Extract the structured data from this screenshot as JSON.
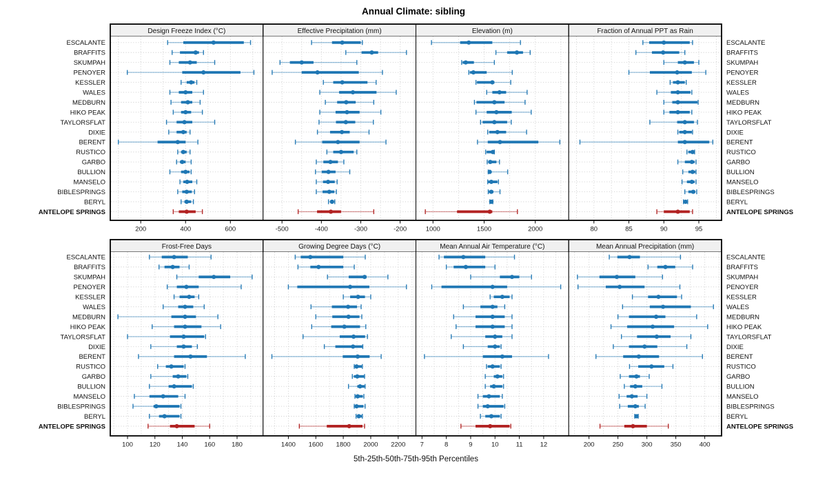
{
  "title": "Annual Climate: sibling",
  "footer": "5th-25th-50th-75th-95th Percentiles",
  "colors": {
    "series": "#1f77b4",
    "target": "#b22222",
    "grid": "#c9c9c9",
    "strip_bg": "#f0f0f0",
    "frame": "#000000",
    "text": "#1a1a1a"
  },
  "chart_data": {
    "type": "percentile-dotplot-trellis",
    "percentiles": [
      "5th",
      "25th",
      "50th",
      "75th",
      "95th"
    ],
    "legend_note": "5th-25th-50th-75th-95th Percentiles",
    "target_site": "ANTELOPE SPRINGS",
    "sites": [
      "ESCALANTE",
      "BRAFFITS",
      "SKUMPAH",
      "PENOYER",
      "KESSLER",
      "WALES",
      "MEDBURN",
      "HIKO PEAK",
      "TAYLORSFLAT",
      "DIXIE",
      "BERENT",
      "RUSTICO",
      "GARBO",
      "BULLION",
      "MANSELO",
      "BIBLESPRINGS",
      "BERYL",
      "ANTELOPE SPRINGS"
    ],
    "panels": [
      {
        "title": "Design Freeze Index (°C)",
        "xlim": [
          64,
          746
        ],
        "ticks": [
          200,
          400,
          600
        ],
        "grid_step": 100,
        "values": [
          [
            320,
            390,
            525,
            660,
            690
          ],
          [
            340,
            375,
            445,
            460,
            480
          ],
          [
            330,
            370,
            420,
            450,
            530
          ],
          [
            140,
            385,
            480,
            645,
            705
          ],
          [
            380,
            405,
            425,
            440,
            450
          ],
          [
            330,
            370,
            400,
            430,
            480
          ],
          [
            335,
            380,
            410,
            430,
            465
          ],
          [
            345,
            380,
            400,
            425,
            475
          ],
          [
            315,
            360,
            395,
            430,
            530
          ],
          [
            325,
            360,
            390,
            405,
            420
          ],
          [
            100,
            275,
            365,
            400,
            455
          ],
          [
            365,
            380,
            390,
            405,
            420
          ],
          [
            360,
            375,
            385,
            400,
            425
          ],
          [
            330,
            380,
            400,
            418,
            425
          ],
          [
            375,
            390,
            407,
            430,
            450
          ],
          [
            365,
            385,
            405,
            428,
            440
          ],
          [
            380,
            395,
            405,
            425,
            435
          ],
          [
            345,
            370,
            405,
            445,
            475
          ]
        ]
      },
      {
        "title": "Effective Precipitation (mm)",
        "xlim": [
          -548,
          -160
        ],
        "ticks": [
          -500,
          -400,
          -300,
          -200
        ],
        "grid_step": 50,
        "values": [
          [
            -425,
            -373,
            -347,
            -300,
            -296
          ],
          [
            -338,
            -298,
            -272,
            -256,
            -184
          ],
          [
            -505,
            -480,
            -450,
            -420,
            -310
          ],
          [
            -525,
            -450,
            -410,
            -305,
            -245
          ],
          [
            -395,
            -370,
            -347,
            -283,
            -261
          ],
          [
            -404,
            -355,
            -320,
            -260,
            -210
          ],
          [
            -390,
            -360,
            -337,
            -313,
            -267
          ],
          [
            -404,
            -364,
            -335,
            -303,
            -249
          ],
          [
            -406,
            -363,
            -338,
            -314,
            -268
          ],
          [
            -410,
            -378,
            -348,
            -328,
            -279
          ],
          [
            -466,
            -398,
            -358,
            -303,
            -236
          ],
          [
            -386,
            -370,
            -350,
            -318,
            -310
          ],
          [
            -413,
            -395,
            -377,
            -358,
            -343
          ],
          [
            -415,
            -399,
            -382,
            -364,
            -328
          ],
          [
            -413,
            -396,
            -383,
            -366,
            -360
          ],
          [
            -413,
            -397,
            -380,
            -367,
            -362
          ],
          [
            -382,
            -378,
            -373,
            -368,
            -366
          ],
          [
            -459,
            -411,
            -376,
            -350,
            -267
          ]
        ]
      },
      {
        "title": "Elevation (m)",
        "xlim": [
          833,
          2327
        ],
        "ticks": [
          1000,
          1500,
          2000
        ],
        "grid_step": 250,
        "values": [
          [
            985,
            1265,
            1350,
            1580,
            1855
          ],
          [
            1615,
            1725,
            1820,
            1880,
            1950
          ],
          [
            1280,
            1290,
            1320,
            1400,
            1600
          ],
          [
            1350,
            1360,
            1395,
            1525,
            1775
          ],
          [
            1420,
            1430,
            1580,
            1600,
            1760
          ],
          [
            1525,
            1580,
            1650,
            1715,
            1920
          ],
          [
            1405,
            1425,
            1600,
            1700,
            1900
          ],
          [
            1420,
            1525,
            1620,
            1770,
            1960
          ],
          [
            1465,
            1485,
            1600,
            1725,
            1765
          ],
          [
            1535,
            1550,
            1630,
            1715,
            1915
          ],
          [
            1435,
            1535,
            1655,
            2030,
            2240
          ],
          [
            1515,
            1525,
            1585,
            1595,
            1600
          ],
          [
            1530,
            1540,
            1560,
            1620,
            1650
          ],
          [
            1540,
            1545,
            1555,
            1570,
            1730
          ],
          [
            1535,
            1540,
            1570,
            1630,
            1640
          ],
          [
            1540,
            1545,
            1570,
            1590,
            1655
          ],
          [
            1555,
            1560,
            1570,
            1580,
            1585
          ],
          [
            925,
            1235,
            1555,
            1580,
            1825
          ]
        ]
      },
      {
        "title": "Fraction of Annual PPT as Rain",
        "xlim": [
          76.4,
          98.25
        ],
        "ticks": [
          80,
          85,
          90,
          95
        ],
        "grid_step": 2.5,
        "values": [
          [
            87,
            87.9,
            90,
            93.7,
            94.1
          ],
          [
            86,
            88.3,
            89.9,
            92.2,
            93
          ],
          [
            90,
            92,
            93,
            94.3,
            95
          ],
          [
            85,
            88,
            91.9,
            94,
            96
          ],
          [
            90.9,
            91.3,
            92,
            93,
            93.2
          ],
          [
            89,
            91,
            92,
            93.8,
            94
          ],
          [
            90,
            91.2,
            92,
            94.8,
            94.9
          ],
          [
            90,
            90.8,
            92,
            93.7,
            94
          ],
          [
            88,
            91.9,
            93,
            94.3,
            94.8
          ],
          [
            92,
            92.2,
            93,
            94,
            94.1
          ],
          [
            78,
            92,
            93,
            96.5,
            97
          ],
          [
            93.3,
            93.5,
            94.1,
            94.3,
            94.4
          ],
          [
            92,
            93,
            94,
            94.4,
            94.6
          ],
          [
            92.7,
            93.5,
            94.1,
            94.5,
            94.6
          ],
          [
            92.6,
            93.3,
            94,
            94.4,
            94.6
          ],
          [
            93,
            93.5,
            94.2,
            94.5,
            94.7
          ],
          [
            92.8,
            92.9,
            93.1,
            93.3,
            93.4
          ],
          [
            89,
            90,
            92,
            93.7,
            94.1
          ]
        ]
      },
      {
        "title": "Frost-Free Days",
        "xlim": [
          87.4,
          199
        ],
        "ticks": [
          100,
          120,
          140,
          160,
          180
        ],
        "grid_step": 10,
        "values": [
          [
            116,
            125,
            134,
            144,
            161
          ],
          [
            123,
            127,
            133,
            138,
            145
          ],
          [
            136,
            152,
            163,
            175,
            191
          ],
          [
            129,
            136,
            143,
            152,
            183
          ],
          [
            134,
            138,
            145,
            149,
            152
          ],
          [
            126,
            137,
            142,
            148,
            156
          ],
          [
            93,
            132,
            142,
            150,
            166
          ],
          [
            118,
            134,
            142,
            154,
            168
          ],
          [
            100,
            131,
            141,
            156,
            157
          ],
          [
            117,
            136,
            141,
            147,
            151
          ],
          [
            108,
            134,
            146,
            158,
            186
          ],
          [
            122,
            128,
            132,
            141,
            142
          ],
          [
            117,
            133,
            137,
            143,
            144
          ],
          [
            116,
            130,
            134,
            147,
            148
          ],
          [
            105,
            116,
            126,
            137,
            142
          ],
          [
            104,
            119,
            121,
            138,
            139
          ],
          [
            116,
            123,
            127,
            138,
            139
          ],
          [
            115,
            131,
            136,
            149,
            160
          ]
        ]
      },
      {
        "title": "Growing Degree Days (°C)",
        "xlim": [
          1216,
          2329
        ],
        "ticks": [
          1400,
          1600,
          1800,
          2000,
          2200
        ],
        "grid_step": 100,
        "values": [
          [
            1450,
            1490,
            1560,
            1800,
            1960
          ],
          [
            1470,
            1560,
            1620,
            1800,
            1880
          ],
          [
            1685,
            1840,
            1955,
            1970,
            2125
          ],
          [
            1400,
            1465,
            1850,
            1990,
            2260
          ],
          [
            1800,
            1850,
            1908,
            1958,
            2000
          ],
          [
            1565,
            1717,
            1835,
            1900,
            1930
          ],
          [
            1600,
            1720,
            1838,
            1918,
            1935
          ],
          [
            1570,
            1712,
            1808,
            1922,
            1964
          ],
          [
            1507,
            1774,
            1875,
            1959,
            1976
          ],
          [
            1662,
            1742,
            1871,
            1939,
            1942
          ],
          [
            1280,
            1796,
            1905,
            1992,
            2076
          ],
          [
            1880,
            1885,
            1897,
            1935,
            1939
          ],
          [
            1866,
            1877,
            1902,
            1952,
            1955
          ],
          [
            1838,
            1902,
            1922,
            1955,
            1959
          ],
          [
            1885,
            1888,
            1905,
            1942,
            1950
          ],
          [
            1880,
            1885,
            1897,
            1947,
            1959
          ],
          [
            1893,
            1902,
            1913,
            1935,
            1939
          ],
          [
            1480,
            1680,
            1843,
            1940,
            1955
          ]
        ]
      },
      {
        "title": "Mean Annual Air Temperature (°C)",
        "xlim": [
          6.75,
          13.03
        ],
        "ticks": [
          7,
          8,
          9,
          10,
          11,
          12
        ],
        "grid_step": 0.5,
        "values": [
          [
            7.7,
            7.9,
            8.7,
            9.6,
            10.8
          ],
          [
            8.0,
            8.3,
            8.8,
            9.6,
            10.0
          ],
          [
            9.0,
            10.2,
            10.7,
            11.0,
            11.5
          ],
          [
            7.4,
            7.8,
            9.9,
            10.5,
            12.7
          ],
          [
            9.8,
            9.95,
            10.3,
            10.6,
            10.7
          ],
          [
            8.7,
            9.4,
            9.9,
            10.1,
            10.4
          ],
          [
            8.3,
            9.2,
            9.9,
            10.4,
            10.7
          ],
          [
            8.4,
            9.2,
            9.9,
            10.4,
            10.7
          ],
          [
            8.2,
            9.6,
            10.0,
            10.3,
            10.7
          ],
          [
            8.7,
            9.7,
            10.0,
            10.2,
            10.25
          ],
          [
            7.1,
            9.5,
            10.3,
            10.7,
            12.2
          ],
          [
            9.65,
            9.7,
            9.9,
            10.2,
            10.25
          ],
          [
            9.6,
            9.95,
            10.1,
            10.3,
            10.35
          ],
          [
            9.6,
            9.8,
            9.95,
            10.3,
            10.35
          ],
          [
            9.3,
            9.5,
            9.75,
            10.2,
            10.3
          ],
          [
            9.3,
            9.5,
            9.7,
            10.35,
            10.4
          ],
          [
            9.4,
            9.6,
            9.85,
            10.2,
            10.25
          ],
          [
            8.6,
            9.2,
            9.8,
            10.6,
            10.65
          ]
        ]
      },
      {
        "title": "Mean Annual Precipitation (mm)",
        "xlim": [
          165,
          429
        ],
        "ticks": [
          200,
          250,
          300,
          350,
          400
        ],
        "grid_step": 25,
        "values": [
          [
            235,
            249,
            270,
            288,
            358
          ],
          [
            302,
            318,
            332,
            349,
            379
          ],
          [
            180,
            218,
            248,
            280,
            327
          ],
          [
            181,
            229,
            253,
            296,
            357
          ],
          [
            275,
            302,
            320,
            352,
            360
          ],
          [
            258,
            305,
            328,
            376,
            415
          ],
          [
            250,
            269,
            316,
            332,
            386
          ],
          [
            238,
            266,
            310,
            347,
            405
          ],
          [
            256,
            283,
            317,
            341,
            376
          ],
          [
            242,
            269,
            296,
            318,
            369
          ],
          [
            212,
            259,
            286,
            321,
            396
          ],
          [
            270,
            285,
            308,
            330,
            345
          ],
          [
            254,
            269,
            282,
            288,
            304
          ],
          [
            261,
            271,
            280,
            292,
            326
          ],
          [
            252,
            265,
            274,
            284,
            300
          ],
          [
            253,
            267,
            280,
            286,
            297
          ],
          [
            279,
            281,
            282,
            284,
            285
          ],
          [
            219,
            261,
            276,
            300,
            337
          ]
        ]
      }
    ]
  }
}
